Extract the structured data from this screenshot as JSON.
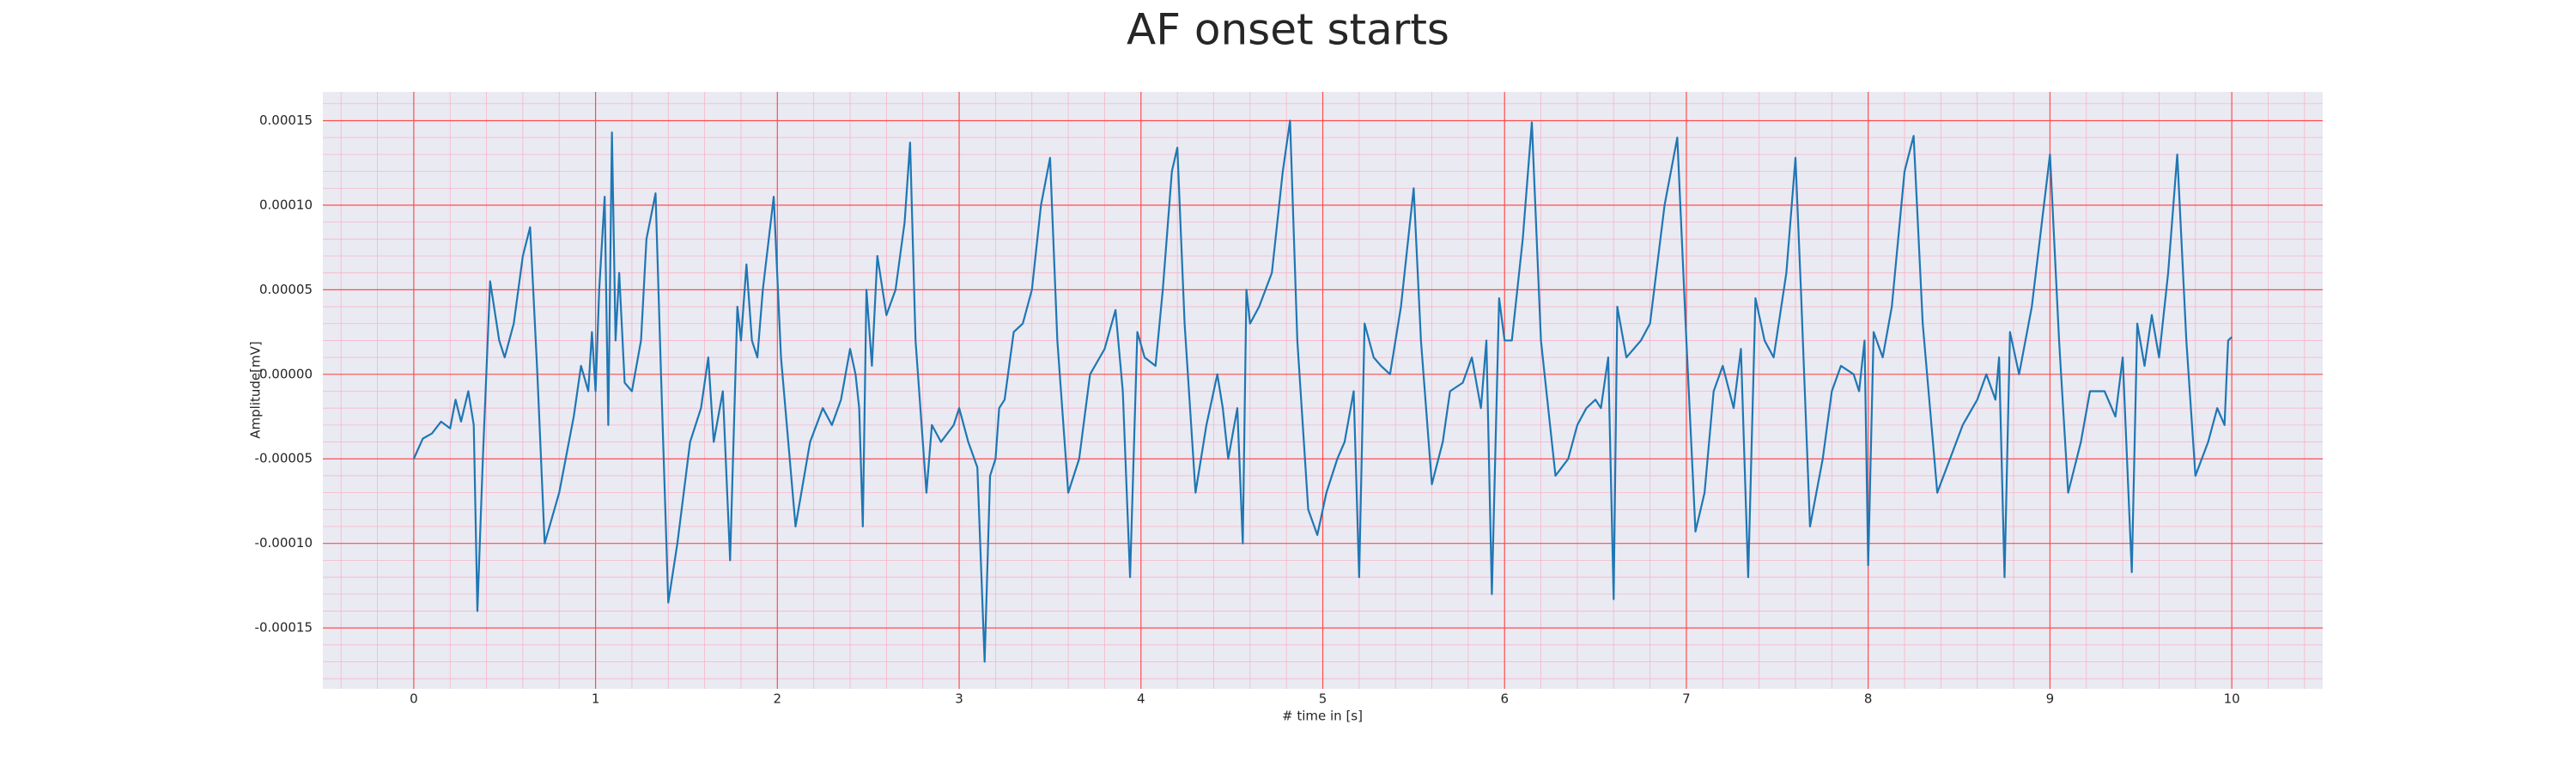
{
  "chart_data": {
    "type": "line",
    "title": "AF onset starts",
    "x_label": "# time in [s]",
    "y_label": "Amplitude[mV]",
    "xlim": [
      -0.5,
      10.5
    ],
    "ylim": [
      -0.000186,
      0.000167
    ],
    "xticks": [
      0,
      1,
      2,
      3,
      4,
      5,
      6,
      7,
      8,
      9,
      10
    ],
    "yticks": [
      {
        "value": -0.00015,
        "label": "-0.00015"
      },
      {
        "value": -0.0001,
        "label": "-0.00010"
      },
      {
        "value": -5e-05,
        "label": "-0.00005"
      },
      {
        "value": 0,
        "label": "0.00000"
      },
      {
        "value": 5e-05,
        "label": "0.00005"
      },
      {
        "value": 0.0001,
        "label": "0.00010"
      },
      {
        "value": 0.00015,
        "label": "0.00015"
      }
    ],
    "grid": true,
    "grid_color": "#ff4d4d",
    "minor_grid": true,
    "minor_grid_color": "#f7b6c8",
    "background": "#eaeaf2",
    "x": [
      0,
      0.05,
      0.1,
      0.15,
      0.2,
      0.23,
      0.26,
      0.3,
      0.33,
      0.35,
      0.38,
      0.42,
      0.47,
      0.5,
      0.55,
      0.6,
      0.64,
      0.68,
      0.72,
      0.8,
      0.88,
      0.92,
      0.96,
      0.98,
      1.0,
      1.02,
      1.05,
      1.07,
      1.09,
      1.11,
      1.13,
      1.16,
      1.2,
      1.25,
      1.28,
      1.33,
      1.36,
      1.4,
      1.45,
      1.52,
      1.58,
      1.62,
      1.65,
      1.7,
      1.74,
      1.78,
      1.8,
      1.83,
      1.86,
      1.89,
      1.92,
      1.98,
      2.02,
      2.1,
      2.18,
      2.25,
      2.3,
      2.35,
      2.4,
      2.43,
      2.45,
      2.47,
      2.49,
      2.52,
      2.55,
      2.6,
      2.65,
      2.7,
      2.73,
      2.76,
      2.82,
      2.85,
      2.9,
      2.97,
      3.0,
      3.05,
      3.1,
      3.14,
      3.17,
      3.2,
      3.22,
      3.25,
      3.3,
      3.35,
      3.4,
      3.45,
      3.5,
      3.54,
      3.6,
      3.66,
      3.72,
      3.8,
      3.86,
      3.9,
      3.94,
      3.98,
      4.02,
      4.08,
      4.12,
      4.17,
      4.2,
      4.24,
      4.3,
      4.36,
      4.42,
      4.45,
      4.48,
      4.53,
      4.56,
      4.58,
      4.6,
      4.65,
      4.72,
      4.78,
      4.82,
      4.86,
      4.92,
      4.97,
      5.02,
      5.08,
      5.12,
      5.17,
      5.2,
      5.23,
      5.28,
      5.32,
      5.37,
      5.43,
      5.5,
      5.54,
      5.6,
      5.66,
      5.7,
      5.77,
      5.82,
      5.87,
      5.9,
      5.93,
      5.97,
      6.0,
      6.04,
      6.1,
      6.15,
      6.2,
      6.28,
      6.35,
      6.4,
      6.45,
      6.5,
      6.53,
      6.57,
      6.6,
      6.62,
      6.67,
      6.75,
      6.8,
      6.88,
      6.95,
      7.0,
      7.05,
      7.1,
      7.15,
      7.2,
      7.26,
      7.3,
      7.34,
      7.38,
      7.43,
      7.48,
      7.55,
      7.6,
      7.63,
      7.68,
      7.75,
      7.8,
      7.85,
      7.92,
      7.95,
      7.98,
      8.0,
      8.03,
      8.08,
      8.13,
      8.2,
      8.25,
      8.3,
      8.38,
      8.45,
      8.52,
      8.6,
      8.65,
      8.7,
      8.72,
      8.75,
      8.78,
      8.83,
      8.9,
      9.0,
      9.05,
      9.1,
      9.17,
      9.22,
      9.3,
      9.36,
      9.4,
      9.45,
      9.48,
      9.52,
      9.56,
      9.6,
      9.65,
      9.7,
      9.75,
      9.8,
      9.87,
      9.92,
      9.96,
      9.98,
      10.0
    ],
    "series": [
      {
        "color": "#1f77b4",
        "values": [
          -5e-05,
          -3.8e-05,
          -3.5e-05,
          -2.8e-05,
          -3.2e-05,
          -1.5e-05,
          -2.8e-05,
          -1e-05,
          -3e-05,
          -0.00014,
          -5e-05,
          5.5e-05,
          2e-05,
          1e-05,
          3e-05,
          7e-05,
          8.7e-05,
          0,
          -0.0001,
          -7e-05,
          -2.5e-05,
          5e-06,
          -1e-05,
          2.5e-05,
          -1e-05,
          5e-05,
          0.000105,
          -3e-05,
          0.000143,
          2e-05,
          6e-05,
          -5e-06,
          -1e-05,
          2e-05,
          8e-05,
          0.000107,
          0,
          -0.000135,
          -0.0001,
          -4e-05,
          -2e-05,
          1e-05,
          -4e-05,
          -1e-05,
          -0.00011,
          4e-05,
          2e-05,
          6.5e-05,
          2e-05,
          1e-05,
          5e-05,
          0.000105,
          1e-05,
          -9e-05,
          -4e-05,
          -2e-05,
          -3e-05,
          -1.5e-05,
          1.5e-05,
          0,
          -2e-05,
          -9e-05,
          5e-05,
          5e-06,
          7e-05,
          3.5e-05,
          5e-05,
          9e-05,
          0.000137,
          2e-05,
          -7e-05,
          -3e-05,
          -4e-05,
          -3e-05,
          -2e-05,
          -4e-05,
          -5.5e-05,
          -0.00017,
          -6e-05,
          -5e-05,
          -2e-05,
          -1.5e-05,
          2.5e-05,
          3e-05,
          5e-05,
          0.0001,
          0.000128,
          2e-05,
          -7e-05,
          -5e-05,
          0,
          1.5e-05,
          3.8e-05,
          -1e-05,
          -0.00012,
          2.5e-05,
          1e-05,
          5e-06,
          5e-05,
          0.00012,
          0.000134,
          3e-05,
          -7e-05,
          -3e-05,
          0,
          -2e-05,
          -5e-05,
          -2e-05,
          -0.0001,
          5e-05,
          3e-05,
          4e-05,
          6e-05,
          0.00012,
          0.00015,
          2e-05,
          -8e-05,
          -9.5e-05,
          -7e-05,
          -5e-05,
          -4e-05,
          -1e-05,
          -0.00012,
          3e-05,
          1e-05,
          5e-06,
          0,
          4e-05,
          0.00011,
          2e-05,
          -6.5e-05,
          -4e-05,
          -1e-05,
          -5e-06,
          1e-05,
          -2e-05,
          2e-05,
          -0.00013,
          4.5e-05,
          2e-05,
          2e-05,
          8e-05,
          0.000149,
          2e-05,
          -6e-05,
          -5e-05,
          -3e-05,
          -2e-05,
          -1.5e-05,
          -2e-05,
          1e-05,
          -0.000133,
          4e-05,
          1e-05,
          2e-05,
          3e-05,
          0.0001,
          0.00014,
          2e-05,
          -9.3e-05,
          -7e-05,
          -1e-05,
          5e-06,
          -2e-05,
          1.5e-05,
          -0.00012,
          4.5e-05,
          2e-05,
          1e-05,
          6e-05,
          0.000128,
          5e-05,
          -9e-05,
          -5e-05,
          -1e-05,
          5e-06,
          0,
          -1e-05,
          2e-05,
          -0.000113,
          2.5e-05,
          1e-05,
          4e-05,
          0.00012,
          0.000141,
          3e-05,
          -7e-05,
          -5e-05,
          -3e-05,
          -1.5e-05,
          0,
          -1.5e-05,
          1e-05,
          -0.00012,
          2.5e-05,
          0,
          4e-05,
          0.00013,
          2e-05,
          -7e-05,
          -4e-05,
          -1e-05,
          -1e-05,
          -2.5e-05,
          1e-05,
          -0.000117,
          3e-05,
          5e-06,
          3.5e-05,
          1e-05,
          6e-05,
          0.00013,
          2e-05,
          -6e-05,
          -4e-05,
          -2e-05,
          -3e-05,
          2e-05,
          2.2e-05
        ]
      }
    ]
  }
}
